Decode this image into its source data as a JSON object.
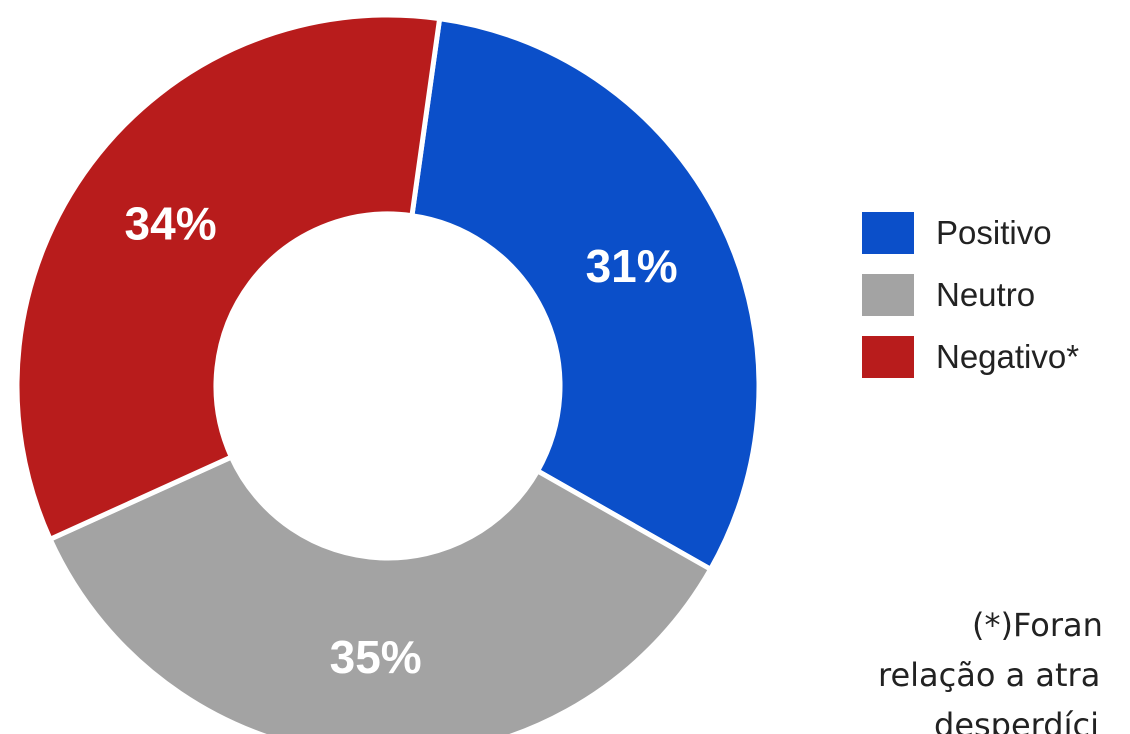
{
  "chart_data": {
    "type": "pie",
    "variant": "donut",
    "categories": [
      "Positivo",
      "Neutro",
      "Negativo*"
    ],
    "values": [
      31,
      35,
      34
    ],
    "labels": [
      "31%",
      "35%",
      "34%"
    ],
    "colors": [
      "#0b4fc9",
      "#a3a3a3",
      "#b81c1c"
    ],
    "legend_position": "right"
  },
  "footnote": {
    "lines": [
      "(*)Foran",
      "relação a atra",
      "desperdíci"
    ]
  }
}
